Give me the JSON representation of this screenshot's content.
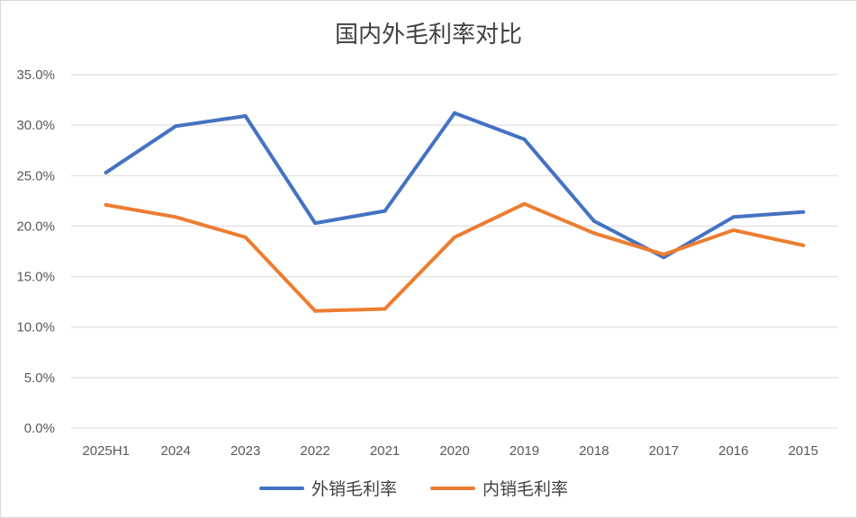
{
  "chart_data": {
    "type": "line",
    "title": "国内外毛利率对比",
    "xlabel": "",
    "ylabel": "",
    "categories": [
      "2025H1",
      "2024",
      "2023",
      "2022",
      "2021",
      "2020",
      "2019",
      "2018",
      "2017",
      "2016",
      "2015"
    ],
    "y_ticks": [
      "0.0%",
      "5.0%",
      "10.0%",
      "15.0%",
      "20.0%",
      "25.0%",
      "30.0%",
      "35.0%"
    ],
    "ylim": [
      0,
      35
    ],
    "grid": true,
    "legend_position": "bottom",
    "series": [
      {
        "name": "外销毛利率",
        "color": "#4472C4",
        "values": [
          25.3,
          29.9,
          30.9,
          20.3,
          21.5,
          31.2,
          28.6,
          20.5,
          16.9,
          20.9,
          21.4
        ]
      },
      {
        "name": "内销毛利率",
        "color": "#ED7D31",
        "values": [
          22.1,
          20.9,
          18.9,
          11.6,
          11.8,
          18.9,
          22.2,
          19.3,
          17.2,
          19.6,
          18.1
        ]
      }
    ]
  }
}
